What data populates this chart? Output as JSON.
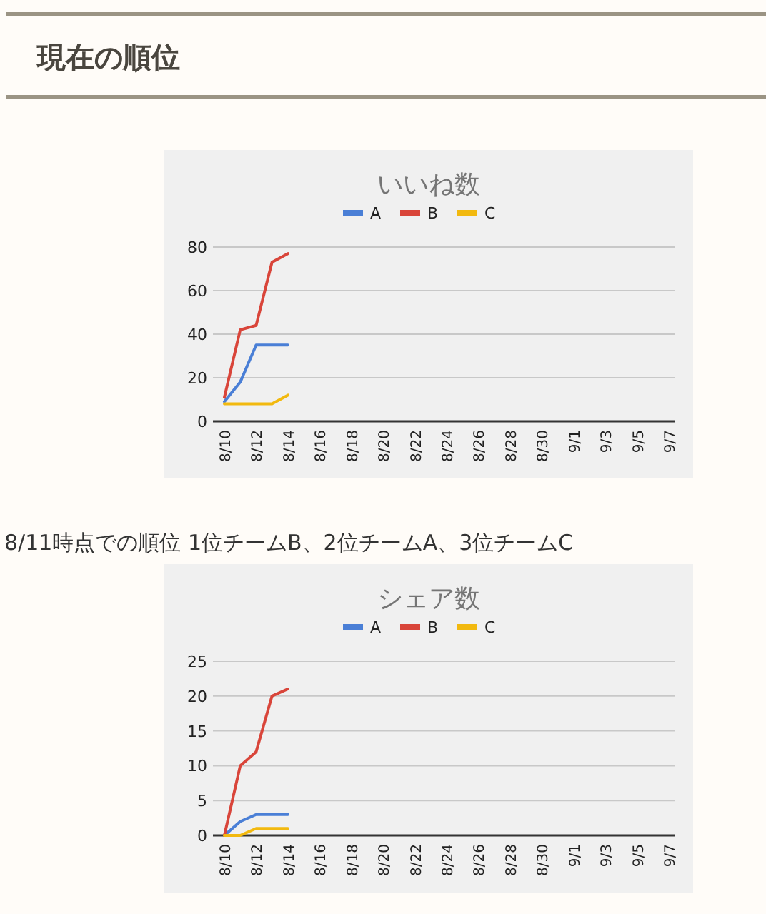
{
  "chart_data": [
    {
      "type": "line",
      "title": "いいね数",
      "annotations": [
        "現在の順位"
      ],
      "categories": [
        "8/10",
        null,
        "8/12",
        null,
        "8/14",
        null,
        "8/16",
        null,
        "8/18",
        null,
        "8/20",
        null,
        "8/22",
        null,
        "8/24",
        null,
        "8/26",
        null,
        "8/28",
        null,
        "8/30",
        null,
        "9/1",
        null,
        "9/3",
        null,
        "9/5",
        null,
        "9/7"
      ],
      "series": [
        {
          "name": "A",
          "color": "#4a7fd6",
          "values": [
            9,
            18,
            35,
            35,
            35,
            null,
            null,
            null,
            null,
            null,
            null,
            null,
            null,
            null,
            null,
            null,
            null,
            null,
            null,
            null,
            null,
            null,
            null,
            null,
            null,
            null,
            null,
            null,
            null
          ]
        },
        {
          "name": "B",
          "color": "#d9453a",
          "values": [
            11,
            42,
            44,
            73,
            77,
            null,
            null,
            null,
            null,
            null,
            null,
            null,
            null,
            null,
            null,
            null,
            null,
            null,
            null,
            null,
            null,
            null,
            null,
            null,
            null,
            null,
            null,
            null,
            null
          ]
        },
        {
          "name": "C",
          "color": "#f2b90f",
          "values": [
            8,
            8,
            8,
            8,
            12,
            null,
            null,
            null,
            null,
            null,
            null,
            null,
            null,
            null,
            null,
            null,
            null,
            null,
            null,
            null,
            null,
            null,
            null,
            null,
            null,
            null,
            null,
            null,
            null
          ]
        }
      ],
      "ylim": [
        0,
        80
      ],
      "yticks": [
        0,
        20,
        40,
        60,
        80
      ],
      "grid": "y",
      "legend": "top"
    },
    {
      "type": "line",
      "title": "シェア数",
      "annotations": [
        "8/11時点での順位 1位チームB、2位チームA、3位チームC"
      ],
      "categories": [
        "8/10",
        null,
        "8/12",
        null,
        "8/14",
        null,
        "8/16",
        null,
        "8/18",
        null,
        "8/20",
        null,
        "8/22",
        null,
        "8/24",
        null,
        "8/26",
        null,
        "8/28",
        null,
        "8/30",
        null,
        "9/1",
        null,
        "9/3",
        null,
        "9/5",
        null,
        "9/7"
      ],
      "series": [
        {
          "name": "A",
          "color": "#4a7fd6",
          "values": [
            0,
            2,
            3,
            3,
            3,
            null,
            null,
            null,
            null,
            null,
            null,
            null,
            null,
            null,
            null,
            null,
            null,
            null,
            null,
            null,
            null,
            null,
            null,
            null,
            null,
            null,
            null,
            null,
            null
          ]
        },
        {
          "name": "B",
          "color": "#d9453a",
          "values": [
            0,
            10,
            12,
            20,
            21,
            null,
            null,
            null,
            null,
            null,
            null,
            null,
            null,
            null,
            null,
            null,
            null,
            null,
            null,
            null,
            null,
            null,
            null,
            null,
            null,
            null,
            null,
            null,
            null
          ]
        },
        {
          "name": "C",
          "color": "#f2b90f",
          "values": [
            0,
            0,
            1,
            1,
            1,
            null,
            null,
            null,
            null,
            null,
            null,
            null,
            null,
            null,
            null,
            null,
            null,
            null,
            null,
            null,
            null,
            null,
            null,
            null,
            null,
            null,
            null,
            null,
            null
          ]
        }
      ],
      "ylim": [
        0,
        25
      ],
      "yticks": [
        0,
        5,
        10,
        15,
        20,
        25
      ],
      "grid": "y",
      "legend": "top"
    }
  ]
}
